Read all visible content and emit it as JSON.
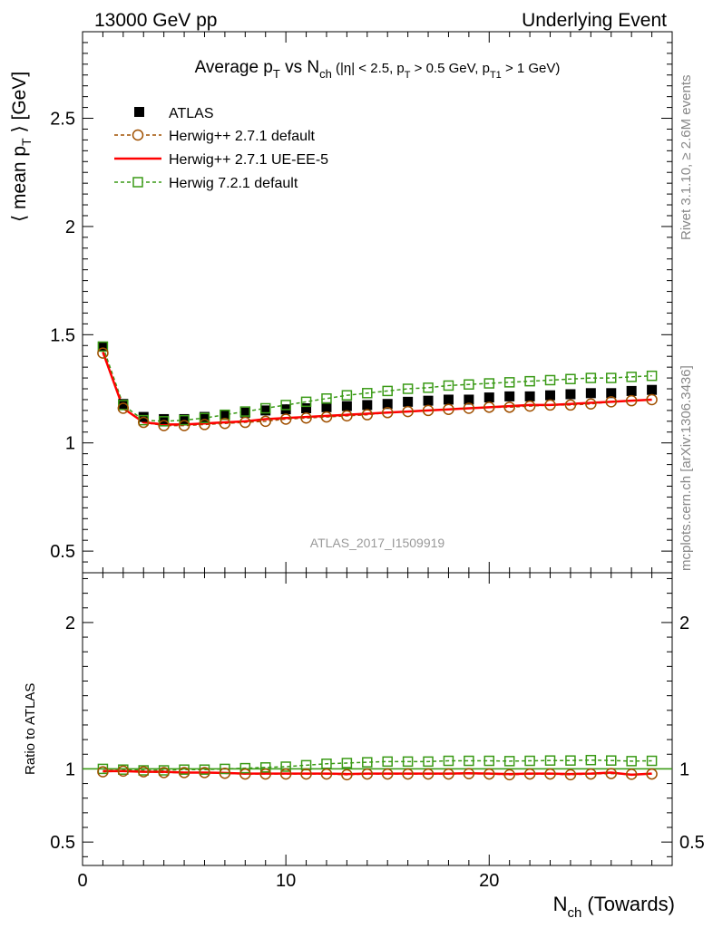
{
  "header": {
    "left": "13000 GeV pp",
    "right": "Underlying Event"
  },
  "title": {
    "main": "Average p",
    "main_sub": "T",
    "vs": " vs N",
    "vs_sub": "ch",
    "cuts_1": " (|η| < 2.5, p",
    "cuts_1_sub": "T",
    "cuts_2": " > 0.5 GeV, p",
    "cuts_2_sub": "T1",
    "cuts_3": " > 1 GeV)"
  },
  "side_labels": {
    "rivet": "Rivet 3.1.10, ≥ 2.6M events",
    "mcplots": "mcplots.cern.ch [arXiv:1306.3436]"
  },
  "analysis_id": "ATLAS_2017_I1509919",
  "axes": {
    "main_ylabel_a": "⟨ mean p",
    "main_ylabel_sub": "T",
    "main_ylabel_b": " ⟩ [GeV]",
    "ratio_ylabel": "Ratio to ATLAS",
    "xlabel_a": "N",
    "xlabel_sub": "ch",
    "xlabel_b": " (Towards)"
  },
  "legend": [
    {
      "label": "ATLAS",
      "color": "#000000",
      "marker": "filled-square"
    },
    {
      "label": "Herwig++ 2.7.1 default",
      "color": "#a05000",
      "marker": "open-circle",
      "line": "dashed"
    },
    {
      "label": "Herwig++ 2.7.1 UE-EE-5",
      "color": "#ff0000",
      "marker": "none",
      "line": "solid"
    },
    {
      "label": "Herwig 7.2.1 default",
      "color": "#3a9a16",
      "marker": "open-square",
      "line": "dashed"
    }
  ],
  "chart_data": [
    {
      "type": "scatter",
      "panel": "main",
      "xlim": [
        0,
        29
      ],
      "ylim": [
        0.4,
        2.9
      ],
      "yticks": [
        "0.5",
        "1",
        "1.5",
        "2",
        "2.5"
      ],
      "xticks": [
        "0",
        "10",
        "20"
      ],
      "x": [
        1,
        2,
        3,
        4,
        5,
        6,
        7,
        8,
        9,
        10,
        11,
        12,
        13,
        14,
        15,
        16,
        17,
        18,
        19,
        20,
        21,
        22,
        23,
        24,
        25,
        26,
        27,
        28
      ],
      "series": [
        {
          "name": "ATLAS",
          "values": [
            1.445,
            1.18,
            1.12,
            1.11,
            1.11,
            1.12,
            1.13,
            1.14,
            1.15,
            1.155,
            1.16,
            1.165,
            1.17,
            1.175,
            1.18,
            1.19,
            1.195,
            1.2,
            1.2,
            1.21,
            1.215,
            1.215,
            1.22,
            1.225,
            1.23,
            1.23,
            1.24,
            1.245
          ]
        },
        {
          "name": "Herwig++ 2.7.1 default",
          "values": [
            1.415,
            1.16,
            1.095,
            1.08,
            1.08,
            1.085,
            1.09,
            1.095,
            1.1,
            1.11,
            1.115,
            1.12,
            1.125,
            1.13,
            1.14,
            1.145,
            1.15,
            1.155,
            1.16,
            1.165,
            1.165,
            1.17,
            1.175,
            1.175,
            1.18,
            1.19,
            1.195,
            1.2
          ]
        },
        {
          "name": "Herwig++ 2.7.1 UE-EE-5",
          "values": [
            1.42,
            1.16,
            1.095,
            1.085,
            1.085,
            1.09,
            1.095,
            1.1,
            1.11,
            1.115,
            1.12,
            1.125,
            1.13,
            1.135,
            1.14,
            1.145,
            1.15,
            1.155,
            1.16,
            1.165,
            1.17,
            1.175,
            1.175,
            1.18,
            1.185,
            1.19,
            1.195,
            1.2
          ]
        },
        {
          "name": "Herwig 7.2.1 default",
          "values": [
            1.445,
            1.175,
            1.105,
            1.1,
            1.105,
            1.115,
            1.13,
            1.145,
            1.16,
            1.175,
            1.19,
            1.205,
            1.22,
            1.23,
            1.24,
            1.25,
            1.255,
            1.265,
            1.27,
            1.275,
            1.28,
            1.285,
            1.29,
            1.295,
            1.3,
            1.3,
            1.305,
            1.31
          ]
        }
      ]
    },
    {
      "type": "scatter",
      "panel": "ratio",
      "xlim": [
        0,
        29
      ],
      "ylim": [
        0.34,
        2.34
      ],
      "yticks": [
        "0.5",
        "1",
        "2"
      ],
      "xticks": [
        "0",
        "10",
        "20"
      ],
      "reference_line": 1,
      "x": [
        1,
        2,
        3,
        4,
        5,
        6,
        7,
        8,
        9,
        10,
        11,
        12,
        13,
        14,
        15,
        16,
        17,
        18,
        19,
        20,
        21,
        22,
        23,
        24,
        25,
        26,
        27,
        28
      ],
      "series": [
        {
          "name": "Herwig++ 2.7.1 default",
          "values": [
            0.98,
            0.985,
            0.98,
            0.975,
            0.975,
            0.975,
            0.97,
            0.965,
            0.965,
            0.965,
            0.965,
            0.965,
            0.96,
            0.965,
            0.965,
            0.965,
            0.965,
            0.965,
            0.967,
            0.965,
            0.96,
            0.965,
            0.965,
            0.96,
            0.965,
            0.968,
            0.963,
            0.965
          ]
        },
        {
          "name": "Herwig++ 2.7.1 UE-EE-5",
          "values": [
            0.985,
            0.985,
            0.98,
            0.98,
            0.975,
            0.975,
            0.972,
            0.968,
            0.968,
            0.968,
            0.968,
            0.968,
            0.965,
            0.968,
            0.968,
            0.968,
            0.968,
            0.968,
            0.97,
            0.968,
            0.965,
            0.968,
            0.968,
            0.965,
            0.968,
            0.975,
            0.96,
            0.968
          ]
        },
        {
          "name": "Herwig 7.2.1 default",
          "values": [
            1.0,
            0.995,
            0.99,
            0.99,
            0.995,
            0.995,
            1.0,
            1.005,
            1.01,
            1.015,
            1.025,
            1.035,
            1.04,
            1.045,
            1.05,
            1.05,
            1.05,
            1.055,
            1.055,
            1.055,
            1.053,
            1.055,
            1.057,
            1.057,
            1.06,
            1.057,
            1.053,
            1.055
          ]
        }
      ]
    }
  ]
}
